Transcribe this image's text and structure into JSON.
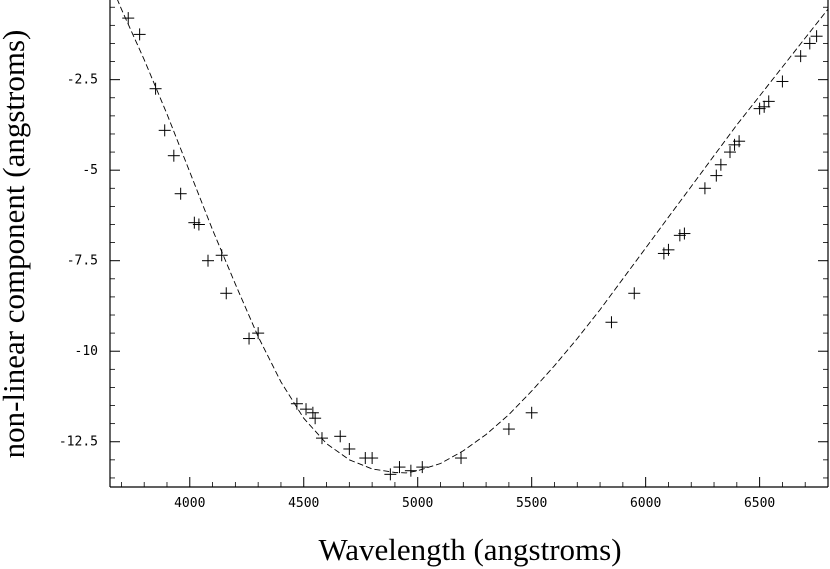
{
  "chart_data": {
    "type": "scatter",
    "xlabel": "Wavelength (angstroms)",
    "ylabel": "non-linear component (angstroms)",
    "xlim": [
      3650,
      6800
    ],
    "ylim": [
      -13.75,
      -0.3
    ],
    "x_ticks": [
      4000,
      4500,
      5000,
      5500,
      6000,
      6500
    ],
    "x_tick_labels": [
      "4000",
      "4500",
      "5000",
      "5500",
      "6000",
      "6500"
    ],
    "y_ticks": [
      -2.5,
      -5,
      -7.5,
      -10,
      -12.5
    ],
    "y_tick_labels": [
      "-2.5",
      "-5",
      "-7.5",
      "-10",
      "-12.5"
    ],
    "grid": false,
    "legend": "none",
    "points_x": [
      3730,
      3780,
      3850,
      3890,
      3930,
      3960,
      4020,
      4040,
      4080,
      4140,
      4160,
      4260,
      4300,
      4470,
      4510,
      4540,
      4550,
      4580,
      4660,
      4700,
      4770,
      4800,
      4880,
      4920,
      4970,
      5020,
      5190,
      5400,
      5500,
      5850,
      5950,
      6080,
      6100,
      6150,
      6170,
      6260,
      6310,
      6330,
      6370,
      6390,
      6410,
      6500,
      6520,
      6540,
      6600,
      6680,
      6720,
      6750
    ],
    "points_y": [
      -0.8,
      -1.25,
      -2.75,
      -3.9,
      -4.6,
      -5.65,
      -6.45,
      -6.5,
      -7.5,
      -7.35,
      -8.4,
      -9.65,
      -9.5,
      -11.45,
      -11.6,
      -11.7,
      -11.85,
      -12.4,
      -12.35,
      -12.7,
      -12.95,
      -12.95,
      -13.4,
      -13.2,
      -13.3,
      -13.2,
      -12.95,
      -12.15,
      -11.7,
      -9.2,
      -8.4,
      -7.3,
      -7.2,
      -6.8,
      -6.75,
      -5.5,
      -5.15,
      -4.85,
      -4.5,
      -4.3,
      -4.2,
      -3.3,
      -3.25,
      -3.1,
      -2.55,
      -1.85,
      -1.5,
      -1.3
    ],
    "fit_curve_x": [
      3650,
      3700,
      3800,
      3900,
      4000,
      4100,
      4200,
      4300,
      4400,
      4500,
      4600,
      4700,
      4800,
      4900,
      4950,
      5000,
      5100,
      5200,
      5300,
      5400,
      5500,
      5600,
      5700,
      5800,
      5900,
      6000,
      6100,
      6200,
      6300,
      6400,
      6500,
      6600,
      6700,
      6800
    ],
    "fit_curve_y": [
      0.2,
      -0.55,
      -1.95,
      -3.45,
      -5.05,
      -6.65,
      -8.15,
      -9.6,
      -10.85,
      -11.85,
      -12.55,
      -13.0,
      -13.25,
      -13.35,
      -13.36,
      -13.3,
      -13.1,
      -12.75,
      -12.3,
      -11.75,
      -11.1,
      -10.4,
      -9.65,
      -8.85,
      -8.0,
      -7.15,
      -6.3,
      -5.45,
      -4.6,
      -3.75,
      -2.95,
      -2.15,
      -1.35,
      -0.55
    ]
  }
}
